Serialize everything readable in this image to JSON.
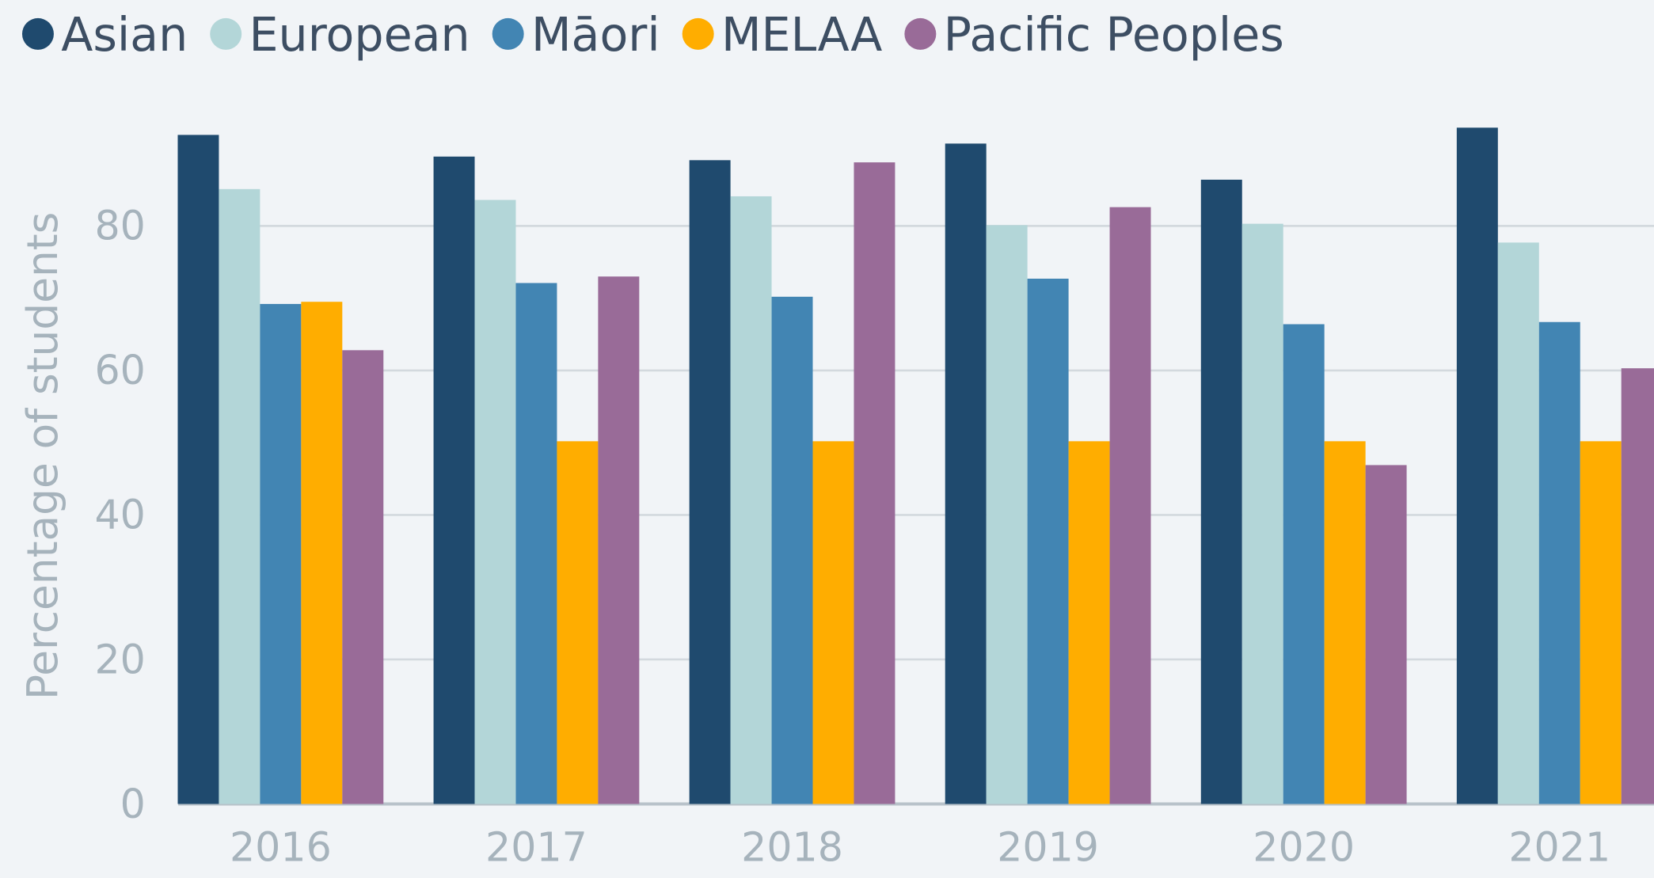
{
  "chart_data": {
    "type": "bar",
    "y_label": "Percentage of students",
    "categories": [
      "2016",
      "2017",
      "2018",
      "2019",
      "2020",
      "2021"
    ],
    "series": [
      {
        "name": "Asian",
        "color": "#1f4a6e",
        "values": [
          92.6,
          89.6,
          89.1,
          91.4,
          86.4,
          93.6
        ]
      },
      {
        "name": "European",
        "color": "#b3d6d8",
        "values": [
          85.1,
          83.6,
          84.1,
          80.1,
          80.3,
          77.7
        ]
      },
      {
        "name": "Māori",
        "color": "#4285b3",
        "values": [
          69.2,
          72.1,
          70.2,
          72.7,
          66.4,
          66.7
        ]
      },
      {
        "name": "MELAA",
        "color": "#ffad00",
        "values": [
          69.5,
          50.2,
          50.2,
          50.2,
          50.2,
          50.2
        ]
      },
      {
        "name": "Pacific Peoples",
        "color": "#996b98",
        "values": [
          62.8,
          73.0,
          88.8,
          82.6,
          46.9,
          60.3
        ]
      }
    ],
    "ylim": [
      0,
      100
    ],
    "yticks": [
      0,
      20,
      40,
      60,
      80
    ],
    "grid": true,
    "legend": "top"
  }
}
